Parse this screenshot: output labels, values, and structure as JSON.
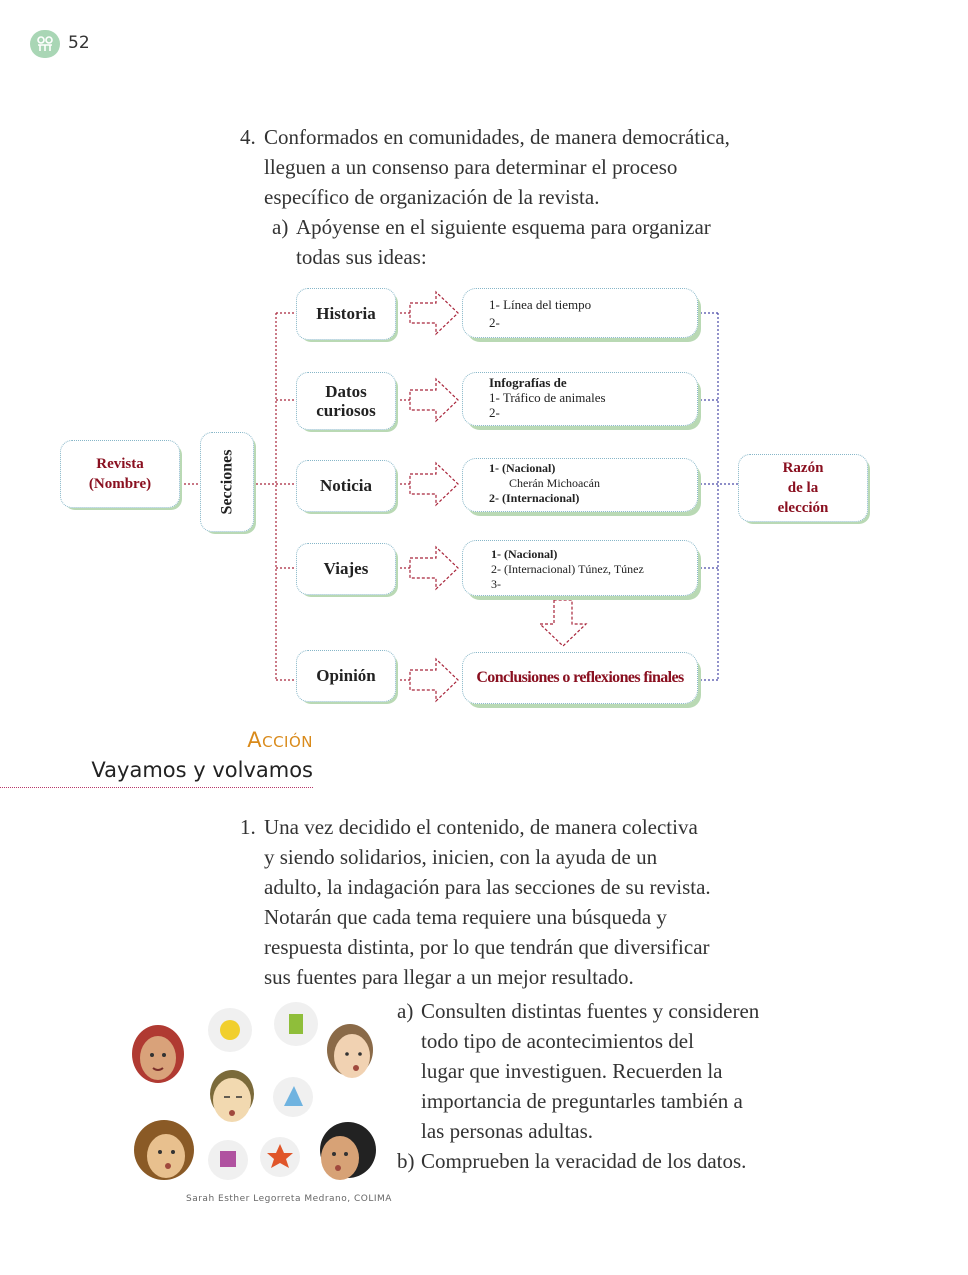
{
  "page": {
    "number": "52"
  },
  "section_top": {
    "item4_marker": "4.",
    "item4_lines": [
      "Conformados en comunidades, de manera democrática,",
      "lleguen a un consenso para determinar el proceso",
      "específico de organización de la revista."
    ],
    "sub_a_marker": "a)",
    "sub_a_lines": [
      "Apóyense en el siguiente esquema para organizar",
      "todas sus ideas:"
    ]
  },
  "diagram": {
    "revista": [
      "Revista",
      "(Nombre)"
    ],
    "secciones": "Secciones",
    "sections": [
      {
        "label": [
          "Historia"
        ],
        "lines": [
          "1- Línea del tiempo",
          "2-"
        ]
      },
      {
        "label": [
          "Datos",
          "curiosos"
        ],
        "lines": [
          "Infografías de",
          "1- Tráfico de animales",
          "2-"
        ]
      },
      {
        "label": [
          "Noticia"
        ],
        "lines": [
          "1- (Nacional)",
          "Cherán Michoacán",
          "2- (Internacional)"
        ]
      },
      {
        "label": [
          "Viajes"
        ],
        "lines": [
          "1- (Nacional)",
          "2- (Internacional) Túnez, Túnez",
          "3-"
        ]
      },
      {
        "label": [
          "Opinión"
        ],
        "lines": [
          "Conclusiones o reflexiones finales"
        ]
      }
    ],
    "razon": [
      "Razón",
      "de la",
      "elección"
    ]
  },
  "accion": {
    "label": "Acción",
    "title": "Vayamos y volvamos"
  },
  "section_bottom": {
    "item1_marker": "1.",
    "item1_lines": [
      "Una vez decidido el contenido, de manera colectiva",
      "y siendo solidarios, inicien, con la ayuda de un",
      "adulto, la  indagación para las secciones de su revista.",
      "Notarán que cada tema requiere una búsqueda y",
      "respuesta distinta, por lo que tendrán que diversificar",
      "sus fuentes para llegar a un mejor resultado."
    ],
    "sub_a_marker": "a)",
    "sub_a_lines": [
      "Consulten distintas fuentes y consideren",
      "todo tipo de acontecimientos del",
      "lugar que investiguen. Recuerden la",
      "importancia de preguntarles también a",
      "las personas adultas."
    ],
    "sub_b_marker": "b)",
    "sub_b_lines": [
      "Comprueben la veracidad de los datos."
    ]
  },
  "illustration": {
    "credit": "Sarah Esther Legorreta Medrano, COLIMA"
  },
  "colors": {
    "accent": "#b8386b",
    "dark_red": "#8a1020",
    "orange": "#d98a1a",
    "teal_border": "#86b6c8",
    "green_shadow": "#b9d9b4",
    "badge_green": "#9fcfae"
  }
}
